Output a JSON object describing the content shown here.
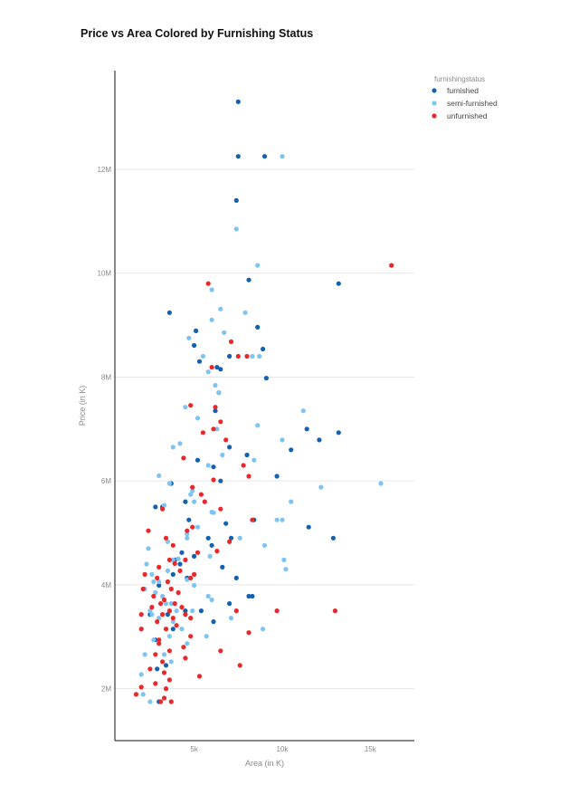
{
  "chart_data": {
    "type": "scatter",
    "title": "Price vs Area Colored by Furnishing Status",
    "xlabel": "Area (in K)",
    "ylabel": "Price (in K)",
    "xlim": [
      500,
      17500
    ],
    "ylim": [
      1000000,
      13900000
    ],
    "xticks": [
      5000,
      10000,
      15000
    ],
    "xtick_labels": [
      "5k",
      "10k",
      "15k"
    ],
    "yticks": [
      2000000,
      4000000,
      6000000,
      8000000,
      10000000,
      12000000
    ],
    "ytick_labels": [
      "2M",
      "4M",
      "6M",
      "8M",
      "10M",
      "12M"
    ],
    "grid": "horizontal",
    "legend": {
      "title": "furnishingstatus",
      "placement": "top-right"
    },
    "series": [
      {
        "name": "furnished",
        "color": "#1461b0",
        "points": [
          [
            7500,
            13300000
          ],
          [
            7500,
            12250000
          ],
          [
            9000,
            12250000
          ],
          [
            7400,
            11400000
          ],
          [
            13200,
            9800000
          ],
          [
            8100,
            9870000
          ],
          [
            3600,
            9240000
          ],
          [
            5100,
            8890000
          ],
          [
            8600,
            8960000
          ],
          [
            5000,
            8610000
          ],
          [
            8900,
            8540000
          ],
          [
            7000,
            8400000
          ],
          [
            5300,
            8300000
          ],
          [
            6300,
            8190000
          ],
          [
            6500,
            8150000
          ],
          [
            9100,
            7980000
          ],
          [
            6400,
            7700000
          ],
          [
            6200,
            7350000
          ],
          [
            11400,
            7000000
          ],
          [
            12100,
            6790000
          ],
          [
            13200,
            6930000
          ],
          [
            7000,
            6650000
          ],
          [
            10500,
            6600000
          ],
          [
            8000,
            6500000
          ],
          [
            9700,
            6090000
          ],
          [
            6500,
            6000000
          ],
          [
            3700,
            5950000
          ],
          [
            11500,
            5110000
          ],
          [
            12900,
            4900000
          ],
          [
            5200,
            6400000
          ],
          [
            6100,
            6270000
          ],
          [
            4500,
            5600000
          ],
          [
            2800,
            5500000
          ],
          [
            3200,
            5500000
          ],
          [
            4700,
            5250000
          ],
          [
            8400,
            5250000
          ],
          [
            7100,
            4900000
          ],
          [
            6000,
            4760000
          ],
          [
            4300,
            4620000
          ],
          [
            5000,
            4550000
          ],
          [
            3900,
            4480000
          ],
          [
            4200,
            4400000
          ],
          [
            3800,
            4200000
          ],
          [
            6600,
            4340000
          ],
          [
            7400,
            4130000
          ],
          [
            4600,
            4130000
          ],
          [
            3000,
            3990000
          ],
          [
            8100,
            3780000
          ],
          [
            8300,
            3780000
          ],
          [
            7000,
            3640000
          ],
          [
            5400,
            3500000
          ],
          [
            4500,
            3500000
          ],
          [
            3500,
            3430000
          ],
          [
            2500,
            3430000
          ],
          [
            6100,
            3290000
          ],
          [
            3800,
            3150000
          ],
          [
            2800,
            2940000
          ],
          [
            3400,
            2450000
          ],
          [
            3000,
            1750000
          ],
          [
            2900,
            2380000
          ],
          [
            5800,
            4900000
          ],
          [
            6800,
            5180000
          ]
        ]
      },
      {
        "name": "semi-furnished",
        "color": "#7ec4f0",
        "points": [
          [
            10000,
            12250000
          ],
          [
            7400,
            10850000
          ],
          [
            8600,
            10150000
          ],
          [
            6000,
            9681000
          ],
          [
            6500,
            9310000
          ],
          [
            7900,
            9240000
          ],
          [
            6000,
            9100000
          ],
          [
            4700,
            8750000
          ],
          [
            6700,
            8855000
          ],
          [
            8300,
            8400000
          ],
          [
            8700,
            8400000
          ],
          [
            5500,
            8400000
          ],
          [
            5800,
            8100000
          ],
          [
            6200,
            7840000
          ],
          [
            6400,
            7700000
          ],
          [
            11200,
            7350000
          ],
          [
            4500,
            7420000
          ],
          [
            5200,
            7210000
          ],
          [
            8600,
            7070000
          ],
          [
            6300,
            7000000
          ],
          [
            10000,
            6790000
          ],
          [
            4200,
            6720000
          ],
          [
            3800,
            6650000
          ],
          [
            6600,
            6500000
          ],
          [
            8400,
            6400000
          ],
          [
            5800,
            6300000
          ],
          [
            3000,
            6100000
          ],
          [
            3600,
            5950000
          ],
          [
            12200,
            5880000
          ],
          [
            15600,
            5950000
          ],
          [
            4800,
            5740000
          ],
          [
            5000,
            5600000
          ],
          [
            10500,
            5600000
          ],
          [
            3300,
            5530000
          ],
          [
            6000,
            5400000
          ],
          [
            9700,
            5250000
          ],
          [
            10000,
            5250000
          ],
          [
            9000,
            4760000
          ],
          [
            7600,
            4900000
          ],
          [
            4600,
            4900000
          ],
          [
            3500,
            4830000
          ],
          [
            2400,
            4700000
          ],
          [
            5900,
            4550000
          ],
          [
            4100,
            4500000
          ],
          [
            3800,
            4480000
          ],
          [
            10100,
            4480000
          ],
          [
            2300,
            4400000
          ],
          [
            3000,
            4340000
          ],
          [
            10200,
            4300000
          ],
          [
            3500,
            4270000
          ],
          [
            2600,
            4200000
          ],
          [
            2700,
            4060000
          ],
          [
            3000,
            4060000
          ],
          [
            4600,
            4100000
          ],
          [
            5000,
            3990000
          ],
          [
            2200,
            3920000
          ],
          [
            2800,
            3850000
          ],
          [
            3200,
            3780000
          ],
          [
            5800,
            3780000
          ],
          [
            6000,
            3710000
          ],
          [
            3400,
            3640000
          ],
          [
            3700,
            3640000
          ],
          [
            2500,
            3500000
          ],
          [
            4000,
            3500000
          ],
          [
            4900,
            3500000
          ],
          [
            2600,
            3430000
          ],
          [
            3000,
            3360000
          ],
          [
            7100,
            3360000
          ],
          [
            3800,
            3290000
          ],
          [
            8900,
            3150000
          ],
          [
            2000,
            3150000
          ],
          [
            4300,
            3150000
          ],
          [
            3600,
            3010000
          ],
          [
            5700,
            3010000
          ],
          [
            2700,
            2940000
          ],
          [
            4600,
            2870000
          ],
          [
            2200,
            2660000
          ],
          [
            3300,
            2660000
          ],
          [
            3700,
            2520000
          ],
          [
            2000,
            2275000
          ],
          [
            2500,
            1750000
          ],
          [
            2100,
            1890000
          ],
          [
            4600,
            4980000
          ],
          [
            5200,
            5110000
          ],
          [
            6100,
            5390000
          ],
          [
            4900,
            5810000
          ]
        ]
      },
      {
        "name": "unfurnished",
        "color": "#e8282a",
        "points": [
          [
            16200,
            10150000
          ],
          [
            5800,
            9800000
          ],
          [
            7100,
            8680000
          ],
          [
            7500,
            8400000
          ],
          [
            8000,
            8400000
          ],
          [
            6000,
            8190000
          ],
          [
            4800,
            7455000
          ],
          [
            6200,
            7420000
          ],
          [
            6500,
            7140000
          ],
          [
            6100,
            7000000
          ],
          [
            5500,
            6930000
          ],
          [
            6800,
            6790000
          ],
          [
            4400,
            6440000
          ],
          [
            7800,
            6300000
          ],
          [
            8100,
            6090000
          ],
          [
            6100,
            6020000
          ],
          [
            4900,
            5880000
          ],
          [
            5400,
            5740000
          ],
          [
            5600,
            5600000
          ],
          [
            3200,
            5460000
          ],
          [
            6500,
            5460000
          ],
          [
            8300,
            5250000
          ],
          [
            4900,
            5110000
          ],
          [
            2400,
            5040000
          ],
          [
            4600,
            5040000
          ],
          [
            3400,
            4900000
          ],
          [
            7000,
            4830000
          ],
          [
            3800,
            4760000
          ],
          [
            5200,
            4620000
          ],
          [
            3600,
            4480000
          ],
          [
            4500,
            4480000
          ],
          [
            3000,
            4340000
          ],
          [
            4200,
            4270000
          ],
          [
            2200,
            4200000
          ],
          [
            2900,
            4130000
          ],
          [
            4800,
            4130000
          ],
          [
            3500,
            4060000
          ],
          [
            3700,
            3920000
          ],
          [
            2100,
            3920000
          ],
          [
            4100,
            3850000
          ],
          [
            2700,
            3780000
          ],
          [
            3300,
            3710000
          ],
          [
            3900,
            3640000
          ],
          [
            3100,
            3640000
          ],
          [
            2600,
            3570000
          ],
          [
            4300,
            3570000
          ],
          [
            3600,
            3500000
          ],
          [
            2000,
            3430000
          ],
          [
            3200,
            3430000
          ],
          [
            4500,
            3430000
          ],
          [
            7400,
            3500000
          ],
          [
            13000,
            3500000
          ],
          [
            9700,
            3500000
          ],
          [
            3800,
            3360000
          ],
          [
            2900,
            3290000
          ],
          [
            4000,
            3220000
          ],
          [
            2000,
            3150000
          ],
          [
            3400,
            3150000
          ],
          [
            8100,
            3080000
          ],
          [
            4800,
            3010000
          ],
          [
            3000,
            2940000
          ],
          [
            6500,
            2730000
          ],
          [
            3600,
            2730000
          ],
          [
            2800,
            2660000
          ],
          [
            4500,
            2590000
          ],
          [
            3200,
            2520000
          ],
          [
            7600,
            2450000
          ],
          [
            2500,
            2380000
          ],
          [
            3300,
            2310000
          ],
          [
            5300,
            2240000
          ],
          [
            3600,
            2170000
          ],
          [
            2800,
            2100000
          ],
          [
            2000,
            2030000
          ],
          [
            3400,
            2000000
          ],
          [
            1700,
            1890000
          ],
          [
            3300,
            1820000
          ],
          [
            3700,
            1750000
          ],
          [
            3100,
            1750000
          ],
          [
            4800,
            3360000
          ],
          [
            4400,
            2800000
          ],
          [
            3000,
            2870000
          ],
          [
            3900,
            4410000
          ],
          [
            5000,
            4200000
          ],
          [
            6300,
            4650000
          ]
        ]
      }
    ]
  }
}
